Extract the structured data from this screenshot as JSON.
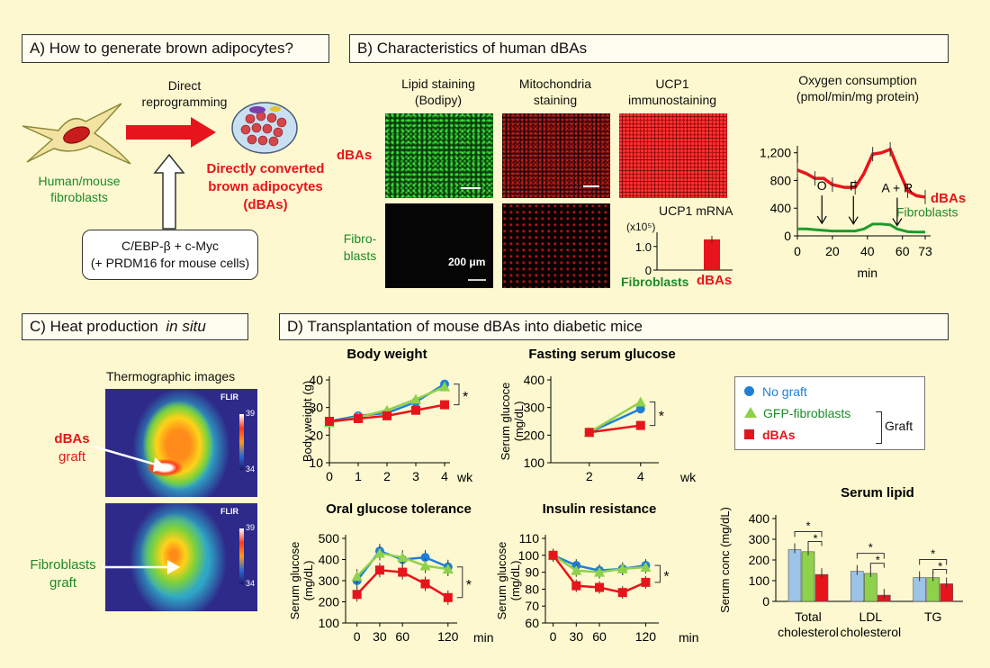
{
  "sections": {
    "a": {
      "header": "A) How to generate brown adipocytes?",
      "arrow_label_1": "Direct",
      "arrow_label_2": "reprogramming",
      "source_1": "Human/mouse",
      "source_2": "fibroblasts",
      "product_1": "Directly converted",
      "product_2": "brown adipocytes",
      "product_3": "(dBAs)",
      "factors_1": "C/EBP-β + c-Myc",
      "factors_2": "(+ PRDM16 for mouse cells)"
    },
    "b": {
      "header": "B) Characteristics of human dBAs",
      "col1_1": "Lipid staining",
      "col1_2": "(Bodipy)",
      "col2_1": "Mitochondria",
      "col2_2": "staining",
      "col3_1": "UCP1",
      "col3_2": "immunostaining",
      "row1": "dBAs",
      "row2_1": "Fibro-",
      "row2_2": "blasts",
      "scale": "200 μm",
      "mrna_title": "UCP1 mRNA",
      "mrna_unit": "(x10⁵)",
      "mrna_xlab_1": "Fibroblasts",
      "mrna_xlab_2": "dBAs",
      "oxy_title_1": "Oxygen consumption",
      "oxy_title_2": "(pmol/min/mg protein)",
      "oxy_markers": [
        "O",
        "F",
        "A + R"
      ],
      "oxy_xlabel": "min",
      "oxy_series_1": "dBAs",
      "oxy_series_2": "Fibroblasts"
    },
    "c": {
      "header_1": "C) Heat production ",
      "header_2": "in situ",
      "subtitle": "Thermographic images",
      "label1_1": "dBAs",
      "label1_2": "graft",
      "label2_1": "Fibroblasts",
      "label2_2": "graft",
      "brand": "FLIR",
      "scale_hi": "39",
      "scale_lo": "34"
    },
    "d": {
      "header": "D) Transplantation of mouse dBAs into diabetic mice",
      "legend": [
        "No graft",
        "GFP-fibroblasts",
        "dBAs"
      ],
      "legend_group": "Graft",
      "sig": "*"
    }
  },
  "colors": {
    "no_graft": "#1f7fd6",
    "gfp": "#8ed14a",
    "dbas": "#e8141b",
    "bar_blue": "#9dc3e6",
    "bar_green": "#8ed14a",
    "bar_red": "#e8141b"
  },
  "chart_data": [
    {
      "type": "line",
      "title": "Body weight",
      "ylabel": "Body weight (g)",
      "xlabel": "wk",
      "x": [
        0,
        1,
        2,
        3,
        4
      ],
      "ylim": [
        10,
        40
      ],
      "yticks": [
        10,
        20,
        30,
        40
      ],
      "series": [
        {
          "name": "No graft",
          "values": [
            25,
            27,
            28,
            32,
            38.5
          ]
        },
        {
          "name": "GFP-fibroblasts",
          "values": [
            24.5,
            26.5,
            29,
            33,
            37.5
          ]
        },
        {
          "name": "dBAs",
          "values": [
            25,
            26,
            27,
            29,
            31
          ]
        }
      ]
    },
    {
      "type": "line",
      "title": "Fasting serum glucose",
      "ylabel": "Serum glucose (mg/dL)",
      "xlabel": "wk",
      "x": [
        2,
        4
      ],
      "ylim": [
        100,
        400
      ],
      "yticks": [
        100,
        200,
        300,
        400
      ],
      "series": [
        {
          "name": "No graft",
          "values": [
            210,
            295
          ]
        },
        {
          "name": "GFP-fibroblasts",
          "values": [
            210,
            320
          ]
        },
        {
          "name": "dBAs",
          "values": [
            210,
            235
          ]
        }
      ]
    },
    {
      "type": "line",
      "title": "Oral glucose tolerance",
      "ylabel": "Serum glucose (mg/dL)",
      "xlabel": "min",
      "x": [
        0,
        30,
        60,
        90,
        120
      ],
      "xticks": [
        0,
        30,
        60,
        120
      ],
      "ylim": [
        100,
        500
      ],
      "yticks": [
        100,
        200,
        300,
        400,
        500
      ],
      "series": [
        {
          "name": "No graft",
          "values": [
            300,
            440,
            400,
            410,
            365
          ]
        },
        {
          "name": "GFP-fibroblasts",
          "values": [
            320,
            430,
            410,
            370,
            355
          ]
        },
        {
          "name": "dBAs",
          "values": [
            235,
            350,
            340,
            285,
            220
          ]
        }
      ]
    },
    {
      "type": "line",
      "title": "Insulin resistance",
      "ylabel": "Serum glucose (mg/dL)",
      "xlabel": "min",
      "x": [
        0,
        30,
        60,
        90,
        120
      ],
      "xticks": [
        0,
        30,
        60,
        120
      ],
      "ylim": [
        60,
        110
      ],
      "yticks": [
        60,
        70,
        80,
        90,
        100,
        110
      ],
      "series": [
        {
          "name": "No graft",
          "values": [
            100,
            94,
            91,
            92,
            94
          ]
        },
        {
          "name": "GFP-fibroblasts",
          "values": [
            100,
            91,
            90,
            92,
            93
          ]
        },
        {
          "name": "dBAs",
          "values": [
            100,
            82,
            81,
            78,
            84
          ]
        }
      ]
    },
    {
      "type": "bar",
      "title": "Serum lipid",
      "ylabel": "Serum conc (mg/dL)",
      "categories": [
        "Total cholesterol",
        "LDL cholesterol",
        "TG"
      ],
      "category_lines": [
        [
          "Total",
          "cholesterol"
        ],
        [
          "LDL",
          "cholesterol"
        ],
        [
          "TG"
        ]
      ],
      "ylim": [
        0,
        400
      ],
      "yticks": [
        0,
        100,
        200,
        300,
        400
      ],
      "series": [
        {
          "name": "No graft",
          "values": [
            250,
            145,
            115
          ]
        },
        {
          "name": "GFP-fibroblasts",
          "values": [
            240,
            135,
            115
          ]
        },
        {
          "name": "dBAs",
          "values": [
            130,
            30,
            85
          ]
        }
      ]
    },
    {
      "type": "line",
      "title": "Oxygen consumption",
      "xlabel": "min",
      "x": [
        0,
        5,
        10,
        15,
        20,
        27,
        33,
        38,
        43,
        48,
        53,
        57,
        63,
        68,
        73
      ],
      "xticks": [
        0,
        20,
        40,
        60,
        73
      ],
      "ylim": [
        0,
        1300
      ],
      "yticks": [
        0,
        400,
        800,
        1200
      ],
      "series": [
        {
          "name": "dBAs",
          "values": [
            950,
            900,
            830,
            830,
            740,
            700,
            700,
            900,
            1180,
            1200,
            1250,
            1000,
            650,
            580,
            560
          ]
        },
        {
          "name": "Fibroblasts",
          "values": [
            100,
            100,
            90,
            80,
            70,
            70,
            70,
            100,
            170,
            170,
            160,
            100,
            60,
            55,
            55
          ]
        }
      ]
    },
    {
      "type": "bar",
      "title": "UCP1 mRNA",
      "categories": [
        "Fibroblasts",
        "dBAs"
      ],
      "values": [
        0,
        1.3
      ],
      "ylim": [
        0,
        1.6
      ],
      "yticks": [
        0,
        1.0
      ]
    }
  ]
}
